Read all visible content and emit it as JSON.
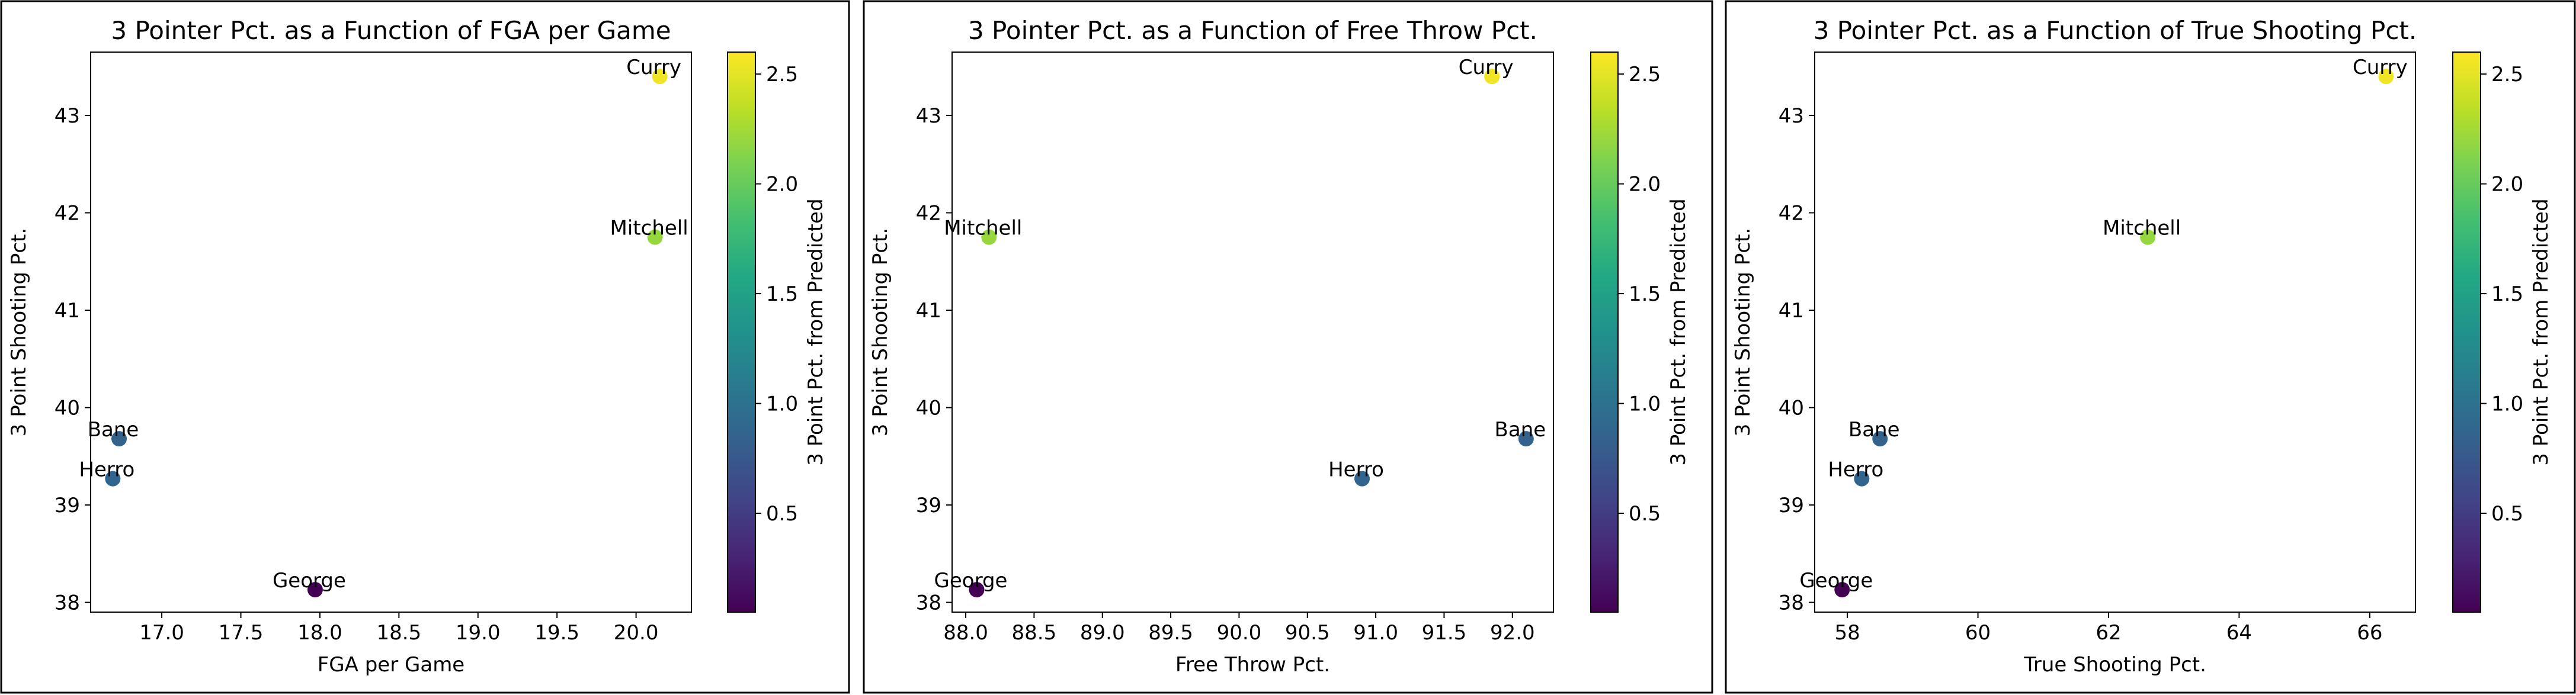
{
  "chart_data": [
    {
      "type": "scatter",
      "title": "3 Pointer Pct. as a Function of FGA per Game",
      "xlabel": "FGA per Game",
      "ylabel": "3 Point Shooting Pct.",
      "colorbar_label": "3 Point Pct. from Predicted",
      "xlim": [
        16.55,
        20.35
      ],
      "ylim": [
        37.9,
        43.65
      ],
      "xticks": [
        17.0,
        17.5,
        18.0,
        18.5,
        19.0,
        19.5,
        20.0
      ],
      "yticks": [
        38,
        39,
        40,
        41,
        42,
        43
      ],
      "points": [
        {
          "label": "Curry",
          "x": 20.15,
          "y": 43.4,
          "c": 2.55
        },
        {
          "label": "Mitchell",
          "x": 20.12,
          "y": 41.75,
          "c": 2.2
        },
        {
          "label": "Bane",
          "x": 16.73,
          "y": 39.68,
          "c": 0.85
        },
        {
          "label": "Herro",
          "x": 16.69,
          "y": 39.27,
          "c": 0.88
        },
        {
          "label": "George",
          "x": 17.97,
          "y": 38.13,
          "c": 0.05
        }
      ]
    },
    {
      "type": "scatter",
      "title": "3 Pointer Pct. as a Function of Free Throw Pct.",
      "xlabel": "Free Throw Pct.",
      "ylabel": "3 Point Shooting Pct.",
      "colorbar_label": "3 Point Pct. from Predicted",
      "xlim": [
        87.9,
        92.3
      ],
      "ylim": [
        37.9,
        43.65
      ],
      "xticks": [
        88.0,
        88.5,
        89.0,
        89.5,
        90.0,
        90.5,
        91.0,
        91.5,
        92.0
      ],
      "yticks": [
        38,
        39,
        40,
        41,
        42,
        43
      ],
      "points": [
        {
          "label": "Curry",
          "x": 91.85,
          "y": 43.4,
          "c": 2.55
        },
        {
          "label": "Mitchell",
          "x": 88.17,
          "y": 41.75,
          "c": 2.2
        },
        {
          "label": "Bane",
          "x": 92.1,
          "y": 39.68,
          "c": 0.85
        },
        {
          "label": "Herro",
          "x": 90.9,
          "y": 39.27,
          "c": 0.88
        },
        {
          "label": "George",
          "x": 88.08,
          "y": 38.13,
          "c": 0.05
        }
      ]
    },
    {
      "type": "scatter",
      "title": "3 Pointer Pct. as a Function of True Shooting Pct.",
      "xlabel": "True Shooting Pct.",
      "ylabel": "3 Point Shooting Pct.",
      "colorbar_label": "3 Point Pct. from Predicted",
      "xlim": [
        57.5,
        66.7
      ],
      "ylim": [
        37.9,
        43.65
      ],
      "xticks": [
        58,
        60,
        62,
        64,
        66
      ],
      "yticks": [
        38,
        39,
        40,
        41,
        42,
        43
      ],
      "points": [
        {
          "label": "Curry",
          "x": 66.25,
          "y": 43.4,
          "c": 2.55
        },
        {
          "label": "Mitchell",
          "x": 62.6,
          "y": 41.75,
          "c": 2.2
        },
        {
          "label": "Bane",
          "x": 58.5,
          "y": 39.68,
          "c": 0.85
        },
        {
          "label": "Herro",
          "x": 58.22,
          "y": 39.27,
          "c": 0.88
        },
        {
          "label": "George",
          "x": 57.92,
          "y": 38.13,
          "c": 0.05
        }
      ]
    }
  ],
  "colorbar": {
    "colormap": "viridis",
    "range": [
      0.05,
      2.6
    ],
    "ticks": [
      0.5,
      1.0,
      1.5,
      2.0,
      2.5
    ]
  }
}
